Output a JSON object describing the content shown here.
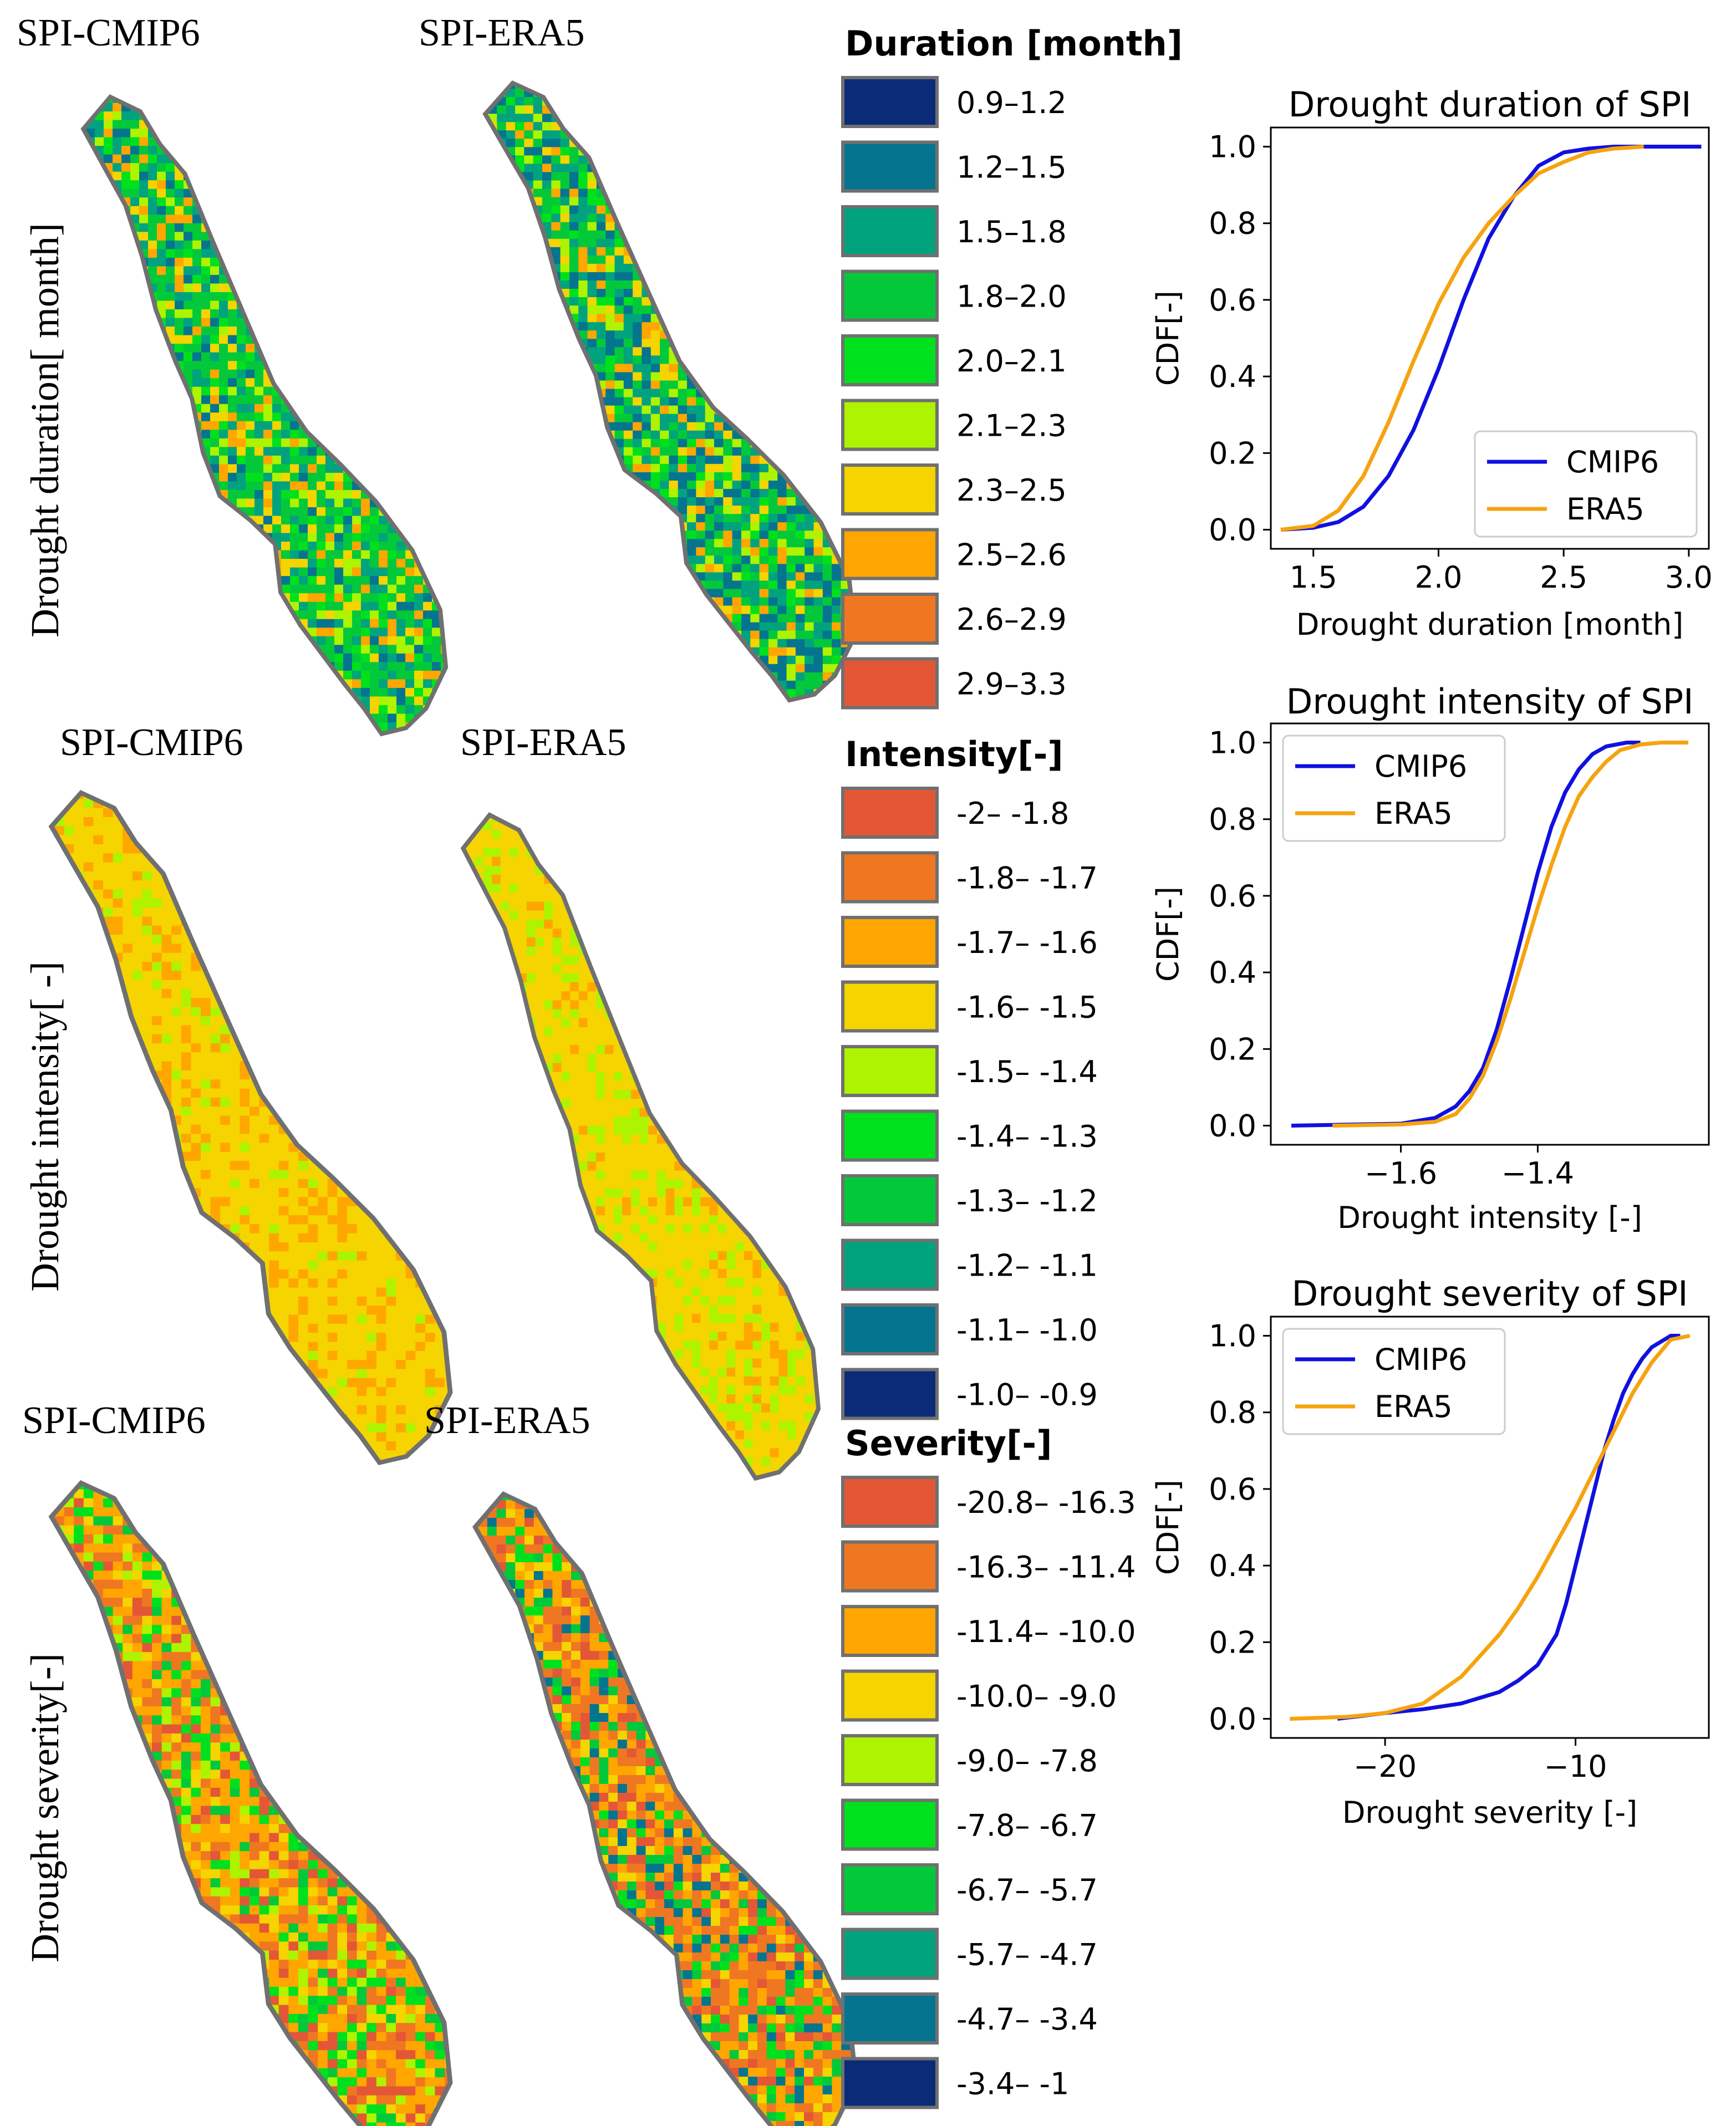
{
  "maps": {
    "rows": [
      {
        "row_label": "Drought duration[ month]",
        "left_title": "SPI-CMIP6",
        "right_title": "SPI-ERA5",
        "left_palette": [
          "#03c93a",
          "#03c93a",
          "#00a37e",
          "#00e11d",
          "#05758f",
          "#03c93a",
          "#f5d400",
          "#aef300",
          "#ffa600",
          "#00a37e"
        ],
        "right_palette": [
          "#00a37e",
          "#03c93a",
          "#05758f",
          "#00a37e",
          "#03c93a",
          "#00e11d",
          "#05758f",
          "#ffa600",
          "#f5d400",
          "#aef300"
        ]
      },
      {
        "row_label": "Drought intensity[ -]",
        "left_title": "SPI-CMIP6",
        "right_title": "SPI-ERA5",
        "left_palette": [
          "#f5d400",
          "#f5d400",
          "#f5d400",
          "#ffa600",
          "#f5d400",
          "#f5d400",
          "#aef300",
          "#ffa600",
          "#f5d400",
          "#f5d400"
        ],
        "right_palette": [
          "#f5d400",
          "#f5d400",
          "#f5d400",
          "#aef300",
          "#f5d400",
          "#ffa600",
          "#f5d400",
          "#aef300",
          "#f5d400",
          "#f5d400"
        ]
      },
      {
        "row_label": "Drought severity[-]",
        "left_title": "SPI-CMIP6",
        "right_title": "SPI-ERA5",
        "left_palette": [
          "#ffa600",
          "#f07722",
          "#f5d400",
          "#ffa600",
          "#00e11d",
          "#03c93a",
          "#f07722",
          "#aef300",
          "#e35737",
          "#ffa600"
        ],
        "right_palette": [
          "#f07722",
          "#ffa600",
          "#f07722",
          "#e35737",
          "#00e11d",
          "#f5d400",
          "#03c93a",
          "#ffa600",
          "#05758f",
          "#f07722"
        ]
      }
    ]
  },
  "legends": [
    {
      "title": "Duration [month]",
      "items": [
        {
          "label": "0.9–1.2",
          "color": "#0b2a78"
        },
        {
          "label": "1.2–1.5",
          "color": "#05758f"
        },
        {
          "label": "1.5–1.8",
          "color": "#00a37e"
        },
        {
          "label": "1.8–2.0",
          "color": "#03c93a"
        },
        {
          "label": "2.0–2.1",
          "color": "#00e11d"
        },
        {
          "label": "2.1–2.3",
          "color": "#aef300"
        },
        {
          "label": "2.3–2.5",
          "color": "#f5d400"
        },
        {
          "label": "2.5–2.6",
          "color": "#ffa600"
        },
        {
          "label": "2.6–2.9",
          "color": "#f07722"
        },
        {
          "label": "2.9–3.3",
          "color": "#e35737"
        }
      ]
    },
    {
      "title": "Intensity[-]",
      "items": [
        {
          "label": "-2– -1.8",
          "color": "#e35737"
        },
        {
          "label": "-1.8– -1.7",
          "color": "#f07722"
        },
        {
          "label": "-1.7– -1.6",
          "color": "#ffa600"
        },
        {
          "label": "-1.6– -1.5",
          "color": "#f5d400"
        },
        {
          "label": "-1.5– -1.4",
          "color": "#aef300"
        },
        {
          "label": "-1.4– -1.3",
          "color": "#00e11d"
        },
        {
          "label": "-1.3– -1.2",
          "color": "#03c93a"
        },
        {
          "label": "-1.2– -1.1",
          "color": "#00a37e"
        },
        {
          "label": "-1.1– -1.0",
          "color": "#05758f"
        },
        {
          "label": "-1.0– -0.9",
          "color": "#0b2a78"
        }
      ]
    },
    {
      "title": "Severity[-]",
      "items": [
        {
          "label": "-20.8– -16.3",
          "color": "#e35737"
        },
        {
          "label": "-16.3– -11.4",
          "color": "#f07722"
        },
        {
          "label": "-11.4– -10.0",
          "color": "#ffa600"
        },
        {
          "label": "-10.0– -9.0",
          "color": "#f5d400"
        },
        {
          "label": "-9.0– -7.8",
          "color": "#aef300"
        },
        {
          "label": "-7.8– -6.7",
          "color": "#00e11d"
        },
        {
          "label": "-6.7– -5.7",
          "color": "#03c93a"
        },
        {
          "label": "-5.7– -4.7",
          "color": "#00a37e"
        },
        {
          "label": "-4.7– -3.4",
          "color": "#05758f"
        },
        {
          "label": "-3.4– -1",
          "color": "#0b2a78"
        }
      ]
    }
  ],
  "chart_data": [
    {
      "type": "line",
      "title": "Drought duration of SPI",
      "xlabel": "Drought duration [month]",
      "ylabel": "CDF[-]",
      "xlim": [
        1.33,
        3.08
      ],
      "ylim": [
        -0.05,
        1.05
      ],
      "xticks": [
        1.5,
        2.0,
        2.5,
        3.0
      ],
      "xtick_labels": [
        "1.5",
        "2.0",
        "2.5",
        "3.0"
      ],
      "yticks": [
        0.0,
        0.2,
        0.4,
        0.6,
        0.8,
        1.0
      ],
      "ytick_labels": [
        "0.0",
        "0.2",
        "0.4",
        "0.6",
        "0.8",
        "1.0"
      ],
      "legend_position": "bottom-right",
      "series": [
        {
          "name": "CMIP6",
          "color": "#1010e0",
          "x": [
            1.37,
            1.5,
            1.6,
            1.7,
            1.8,
            1.9,
            2.0,
            2.1,
            2.2,
            2.3,
            2.4,
            2.5,
            2.6,
            2.7,
            2.9,
            3.05
          ],
          "y": [
            0.0,
            0.005,
            0.02,
            0.06,
            0.14,
            0.26,
            0.42,
            0.6,
            0.76,
            0.87,
            0.95,
            0.985,
            0.995,
            1.0,
            1.0,
            1.0
          ]
        },
        {
          "name": "ERA5",
          "color": "#f5a30f",
          "x": [
            1.37,
            1.5,
            1.6,
            1.7,
            1.8,
            1.9,
            2.0,
            2.1,
            2.2,
            2.3,
            2.4,
            2.5,
            2.6,
            2.7,
            2.82
          ],
          "y": [
            0.0,
            0.01,
            0.05,
            0.14,
            0.28,
            0.44,
            0.59,
            0.71,
            0.8,
            0.87,
            0.93,
            0.96,
            0.985,
            0.995,
            1.0
          ]
        }
      ]
    },
    {
      "type": "line",
      "title": "Drought intensity of SPI",
      "xlabel": "Drought intensity [-]",
      "ylabel": "CDF[-]",
      "xlim": [
        -1.79,
        -1.15
      ],
      "ylim": [
        -0.05,
        1.05
      ],
      "xticks": [
        -1.6,
        -1.4
      ],
      "xtick_labels": [
        "−1.6",
        "−1.4"
      ],
      "yticks": [
        0.0,
        0.2,
        0.4,
        0.6,
        0.8,
        1.0
      ],
      "ytick_labels": [
        "0.0",
        "0.2",
        "0.4",
        "0.6",
        "0.8",
        "1.0"
      ],
      "legend_position": "top-left",
      "series": [
        {
          "name": "CMIP6",
          "color": "#1010e0",
          "x": [
            -1.76,
            -1.6,
            -1.55,
            -1.52,
            -1.5,
            -1.48,
            -1.46,
            -1.44,
            -1.42,
            -1.4,
            -1.38,
            -1.36,
            -1.34,
            -1.32,
            -1.3,
            -1.27,
            -1.25
          ],
          "y": [
            0.0,
            0.005,
            0.02,
            0.05,
            0.09,
            0.15,
            0.25,
            0.38,
            0.52,
            0.66,
            0.78,
            0.87,
            0.93,
            0.97,
            0.99,
            1.0,
            1.0
          ]
        },
        {
          "name": "ERA5",
          "color": "#f5a30f",
          "x": [
            -1.7,
            -1.6,
            -1.55,
            -1.52,
            -1.5,
            -1.48,
            -1.46,
            -1.44,
            -1.42,
            -1.4,
            -1.38,
            -1.36,
            -1.34,
            -1.32,
            -1.3,
            -1.28,
            -1.25,
            -1.22,
            -1.18
          ],
          "y": [
            0.0,
            0.003,
            0.01,
            0.03,
            0.07,
            0.13,
            0.22,
            0.33,
            0.45,
            0.57,
            0.68,
            0.78,
            0.86,
            0.91,
            0.95,
            0.98,
            0.995,
            1.0,
            1.0
          ]
        }
      ]
    },
    {
      "type": "line",
      "title": "Drought severity of SPI",
      "xlabel": "Drought severity [-]",
      "ylabel": "CDF[-]",
      "xlim": [
        -26.0,
        -3.0
      ],
      "ylim": [
        -0.05,
        1.05
      ],
      "xticks": [
        -20,
        -10
      ],
      "xtick_labels": [
        "−20",
        "−10"
      ],
      "yticks": [
        0.0,
        0.2,
        0.4,
        0.6,
        0.8,
        1.0
      ],
      "ytick_labels": [
        "0.0",
        "0.2",
        "0.4",
        "0.6",
        "0.8",
        "1.0"
      ],
      "legend_position": "top-left",
      "series": [
        {
          "name": "CMIP6",
          "color": "#1010e0",
          "x": [
            -22.5,
            -20,
            -18,
            -16,
            -14,
            -13,
            -12,
            -11,
            -10.5,
            -10,
            -9.5,
            -9,
            -8.5,
            -8,
            -7.5,
            -7,
            -6.5,
            -6,
            -5,
            -4.5
          ],
          "y": [
            0.0,
            0.015,
            0.025,
            0.04,
            0.07,
            0.1,
            0.14,
            0.22,
            0.3,
            0.4,
            0.5,
            0.6,
            0.7,
            0.78,
            0.85,
            0.9,
            0.94,
            0.97,
            1.0,
            1.0
          ]
        },
        {
          "name": "ERA5",
          "color": "#f5a30f",
          "x": [
            -25.0,
            -22,
            -20,
            -18,
            -16,
            -14,
            -13,
            -12,
            -11,
            -10,
            -9,
            -8,
            -7,
            -6,
            -5,
            -4
          ],
          "y": [
            0.0,
            0.005,
            0.015,
            0.04,
            0.11,
            0.22,
            0.29,
            0.37,
            0.46,
            0.55,
            0.65,
            0.75,
            0.85,
            0.93,
            0.99,
            1.0
          ]
        }
      ]
    }
  ]
}
